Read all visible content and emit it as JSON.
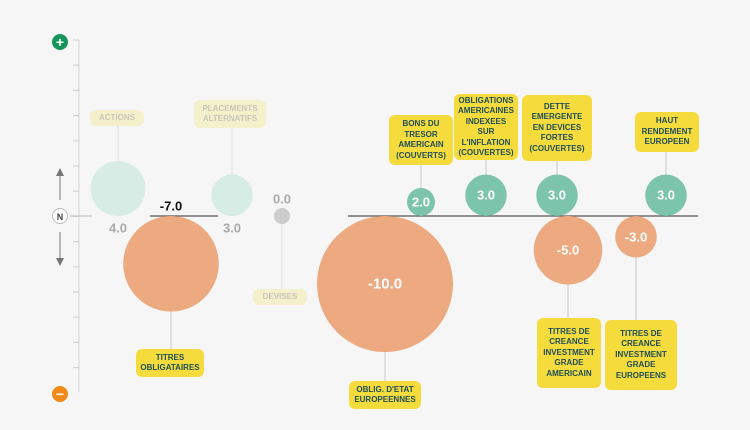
{
  "chart_data": {
    "type": "bubble",
    "ylim": [
      -10,
      3
    ],
    "axis": {
      "top_marker": "+",
      "mid_marker": "N",
      "bottom_marker": "−"
    },
    "colors": {
      "positive": "#7cc4ab",
      "negative": "#eda97f",
      "neutral": "#cccccc",
      "faded_positive": "#d7ece4",
      "label_bg": "#f5dc3c",
      "label_text": "#1f4d5a",
      "plus_badge": "#16955a",
      "minus_badge": "#f08a18"
    },
    "series": [
      {
        "label": "ACTIONS",
        "value": 4.0,
        "display": "4.0",
        "faded": true
      },
      {
        "label": "TITRES OBLIGATAIRES",
        "value": -7.0,
        "display": "-7.0",
        "faded": false
      },
      {
        "label": "PLACEMENTS ALTERNATIFS",
        "value": 3.0,
        "display": "3.0",
        "faded": true
      },
      {
        "label": "DEVISES",
        "value": 0.0,
        "display": "0.0",
        "faded": true
      },
      {
        "label": "OBLIG. D'ETAT EUROPEENNES",
        "value": -10.0,
        "display": "-10.0",
        "faded": false
      },
      {
        "label": "BONS DU TRESOR AMERICAIN (COUVERTS)",
        "value": 2.0,
        "display": "2.0",
        "faded": false
      },
      {
        "label": "OBLIGATIONS AMERICAINES INDEXEES SUR L'INFLATION (COUVERTES)",
        "value": 3.0,
        "display": "3.0",
        "faded": false
      },
      {
        "label": "DETTE EMERGENTE EN DEVICES FORTES (COUVERTES)",
        "value": 3.0,
        "display": "3.0",
        "faded": false
      },
      {
        "label": "TITRES DE CREANCE INVESTMENT GRADE AMERICAIN",
        "value": -5.0,
        "display": "-5.0",
        "faded": false
      },
      {
        "label": "TITRES DE CREANCE INVESTMENT GRADE EUROPEENS",
        "value": -3.0,
        "display": "-3.0",
        "faded": false
      },
      {
        "label": "HAUT RENDEMENT EUROPEEN",
        "value": 3.0,
        "display": "3.0",
        "faded": false
      }
    ]
  }
}
